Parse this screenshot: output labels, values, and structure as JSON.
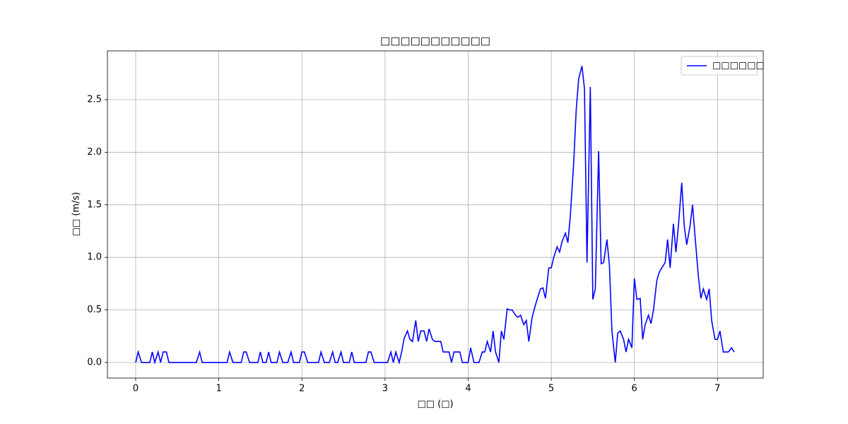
{
  "chart_data": {
    "type": "line",
    "title": "□□□□□□□□□□□",
    "x_label": "□□ (□)",
    "y_label": "□□ (m/s)",
    "x": [
      0,
      0.03,
      0.07,
      0.17,
      0.2,
      0.23,
      0.27,
      0.3,
      0.33,
      0.37,
      0.4,
      0.73,
      0.77,
      0.8,
      1.1,
      1.13,
      1.17,
      1.27,
      1.3,
      1.33,
      1.37,
      1.47,
      1.5,
      1.53,
      1.57,
      1.6,
      1.63,
      1.7,
      1.73,
      1.77,
      1.83,
      1.87,
      1.9,
      1.97,
      2.0,
      2.03,
      2.07,
      2.2,
      2.23,
      2.27,
      2.33,
      2.37,
      2.4,
      2.43,
      2.47,
      2.5,
      2.57,
      2.6,
      2.63,
      2.77,
      2.8,
      2.83,
      2.87,
      3.03,
      3.07,
      3.1,
      3.13,
      3.17,
      3.2,
      3.23,
      3.27,
      3.3,
      3.33,
      3.37,
      3.4,
      3.43,
      3.47,
      3.5,
      3.53,
      3.57,
      3.6,
      3.63,
      3.67,
      3.7,
      3.73,
      3.77,
      3.8,
      3.83,
      3.87,
      3.9,
      3.93,
      4.0,
      4.03,
      4.07,
      4.13,
      4.17,
      4.2,
      4.23,
      4.27,
      4.3,
      4.33,
      4.37,
      4.4,
      4.43,
      4.47,
      4.5,
      4.53,
      4.57,
      4.6,
      4.63,
      4.67,
      4.7,
      4.73,
      4.77,
      4.8,
      4.83,
      4.87,
      4.9,
      4.93,
      4.97,
      5.0,
      5.03,
      5.07,
      5.1,
      5.13,
      5.17,
      5.2,
      5.23,
      5.27,
      5.3,
      5.33,
      5.37,
      5.4,
      5.43,
      5.47,
      5.5,
      5.53,
      5.57,
      5.6,
      5.63,
      5.67,
      5.7,
      5.73,
      5.77,
      5.8,
      5.83,
      5.87,
      5.9,
      5.93,
      5.97,
      6.0,
      6.03,
      6.07,
      6.1,
      6.13,
      6.17,
      6.2,
      6.23,
      6.27,
      6.3,
      6.33,
      6.37,
      6.4,
      6.43,
      6.47,
      6.5,
      6.53,
      6.57,
      6.6,
      6.63,
      6.67,
      6.7,
      6.73,
      6.77,
      6.8,
      6.83,
      6.87,
      6.9,
      6.93,
      6.97,
      7.0,
      7.03,
      7.07,
      7.1,
      7.13,
      7.17,
      7.2
    ],
    "series": [
      {
        "name": "□□□□□□",
        "color": "#0000ff",
        "values": [
          0,
          0.1,
          0,
          0,
          0.1,
          0,
          0.1,
          0,
          0.1,
          0.1,
          0,
          0,
          0.1,
          0,
          0,
          0.1,
          0,
          0,
          0.1,
          0.1,
          0,
          0,
          0.1,
          0,
          0,
          0.1,
          0,
          0,
          0.1,
          0,
          0,
          0.1,
          0,
          0,
          0.1,
          0.1,
          0,
          0,
          0.1,
          0,
          0,
          0.1,
          0,
          0,
          0.1,
          0,
          0,
          0.1,
          0,
          0,
          0.1,
          0.1,
          0,
          0,
          0.1,
          0,
          0.1,
          0,
          0.1,
          0.23,
          0.3,
          0.22,
          0.2,
          0.4,
          0.2,
          0.3,
          0.3,
          0.2,
          0.32,
          0.22,
          0.2,
          0.2,
          0.2,
          0.1,
          0.1,
          0.1,
          0,
          0.1,
          0.1,
          0.1,
          0,
          0,
          0.14,
          0,
          0,
          0.1,
          0.1,
          0.2,
          0.1,
          0.3,
          0.1,
          0,
          0.3,
          0.22,
          0.51,
          0.5,
          0.5,
          0.45,
          0.43,
          0.45,
          0.36,
          0.4,
          0.2,
          0.43,
          0.52,
          0.6,
          0.7,
          0.71,
          0.61,
          0.9,
          0.9,
          1.0,
          1.1,
          1.05,
          1.15,
          1.23,
          1.14,
          1.4,
          1.9,
          2.4,
          2.7,
          2.82,
          2.6,
          0.95,
          2.62,
          0.6,
          0.7,
          2.01,
          0.94,
          0.95,
          1.17,
          0.92,
          0.3,
          0,
          0.28,
          0.3,
          0.22,
          0.1,
          0.22,
          0.14,
          0.8,
          0.6,
          0.61,
          0.22,
          0.36,
          0.45,
          0.37,
          0.5,
          0.78,
          0.86,
          0.9,
          0.95,
          1.17,
          0.9,
          1.32,
          1.05,
          1.3,
          1.71,
          1.3,
          1.12,
          1.3,
          1.5,
          1.2,
          0.82,
          0.61,
          0.7,
          0.6,
          0.7,
          0.4,
          0.22,
          0.22,
          0.3,
          0.1,
          0.1,
          0.1,
          0.14,
          0.1
        ]
      }
    ],
    "xlim": [
      -0.34,
      7.55
    ],
    "ylim": [
      -0.148,
      2.964
    ],
    "xticks": [
      0,
      1,
      2,
      3,
      4,
      5,
      6,
      7
    ],
    "yticks": [
      {
        "value": 0,
        "label": "0.0"
      },
      0.5,
      {
        "value": 1,
        "label": "1.0"
      },
      1.5,
      {
        "value": 2,
        "label": "2.0"
      },
      2.5
    ],
    "grid": true,
    "legend": "upper right"
  }
}
